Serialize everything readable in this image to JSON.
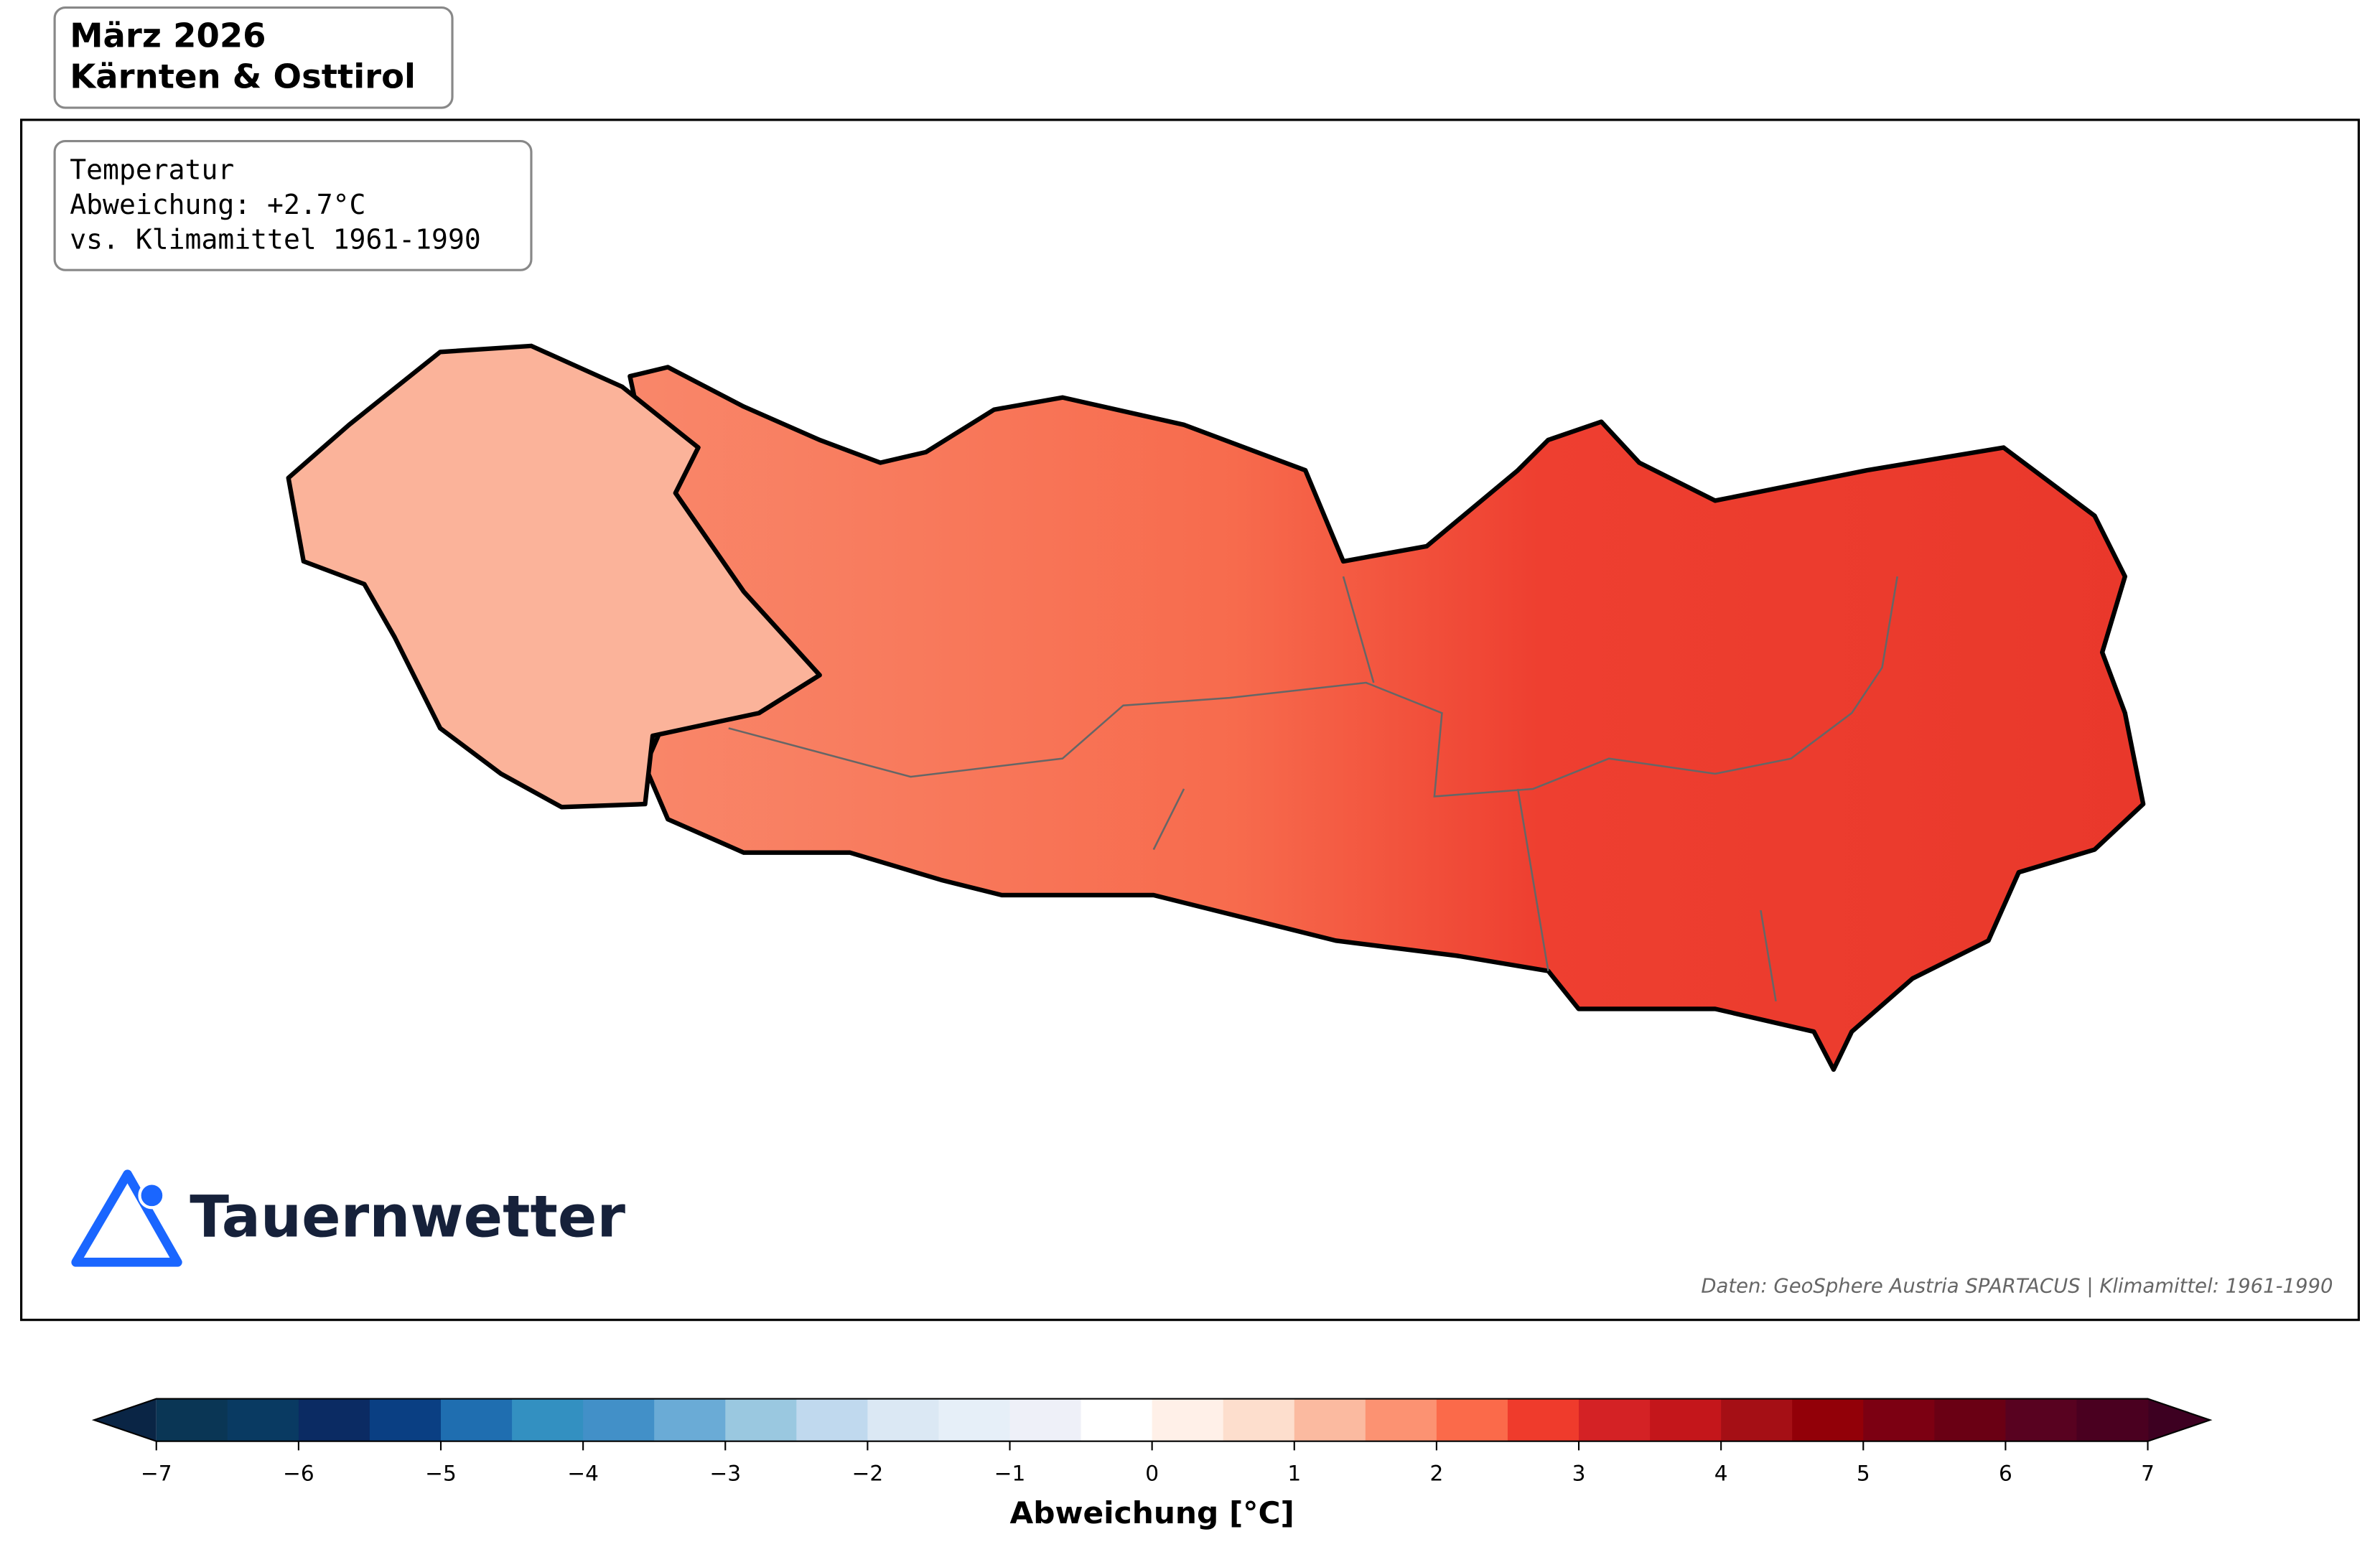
{
  "header": {
    "title_lines": [
      "März 2026",
      "Kärnten & Osttirol"
    ]
  },
  "info_box": {
    "lines": [
      "Temperatur",
      "Abweichung: +2.7°C",
      "vs. Klimamittel 1961-1990"
    ]
  },
  "logo": {
    "text": "Tauernwetter"
  },
  "source": "Daten: GeoSphere Austria SPARTACUS | Klimamittel: 1961-1990",
  "chart_data": {
    "type": "colorbar",
    "xlabel": "Abweichung [°C]",
    "xlim": [
      -7,
      7
    ],
    "xticks": [
      {
        "value": -7,
        "label": "−7"
      },
      {
        "value": -6,
        "label": "−6"
      },
      {
        "value": -5,
        "label": "−5"
      },
      {
        "value": -4,
        "label": "−4"
      },
      {
        "value": -3,
        "label": "−3"
      },
      {
        "value": -2,
        "label": "−2"
      },
      {
        "value": -1,
        "label": "−1"
      },
      0,
      1,
      2,
      3,
      4,
      5,
      6,
      7
    ],
    "bins": [
      -7,
      -6.5,
      -6,
      -5.5,
      -5,
      -4.5,
      -4,
      -3.5,
      -3,
      -2.5,
      -2,
      -1.5,
      -1,
      -0.5,
      0,
      0.5,
      1,
      1.5,
      2,
      2.5,
      3,
      3.5,
      4,
      4.5,
      5,
      5.5,
      6,
      6.5,
      7
    ],
    "colors": [
      "#0a3655",
      "#093a62",
      "#0b2b63",
      "#0a3f83",
      "#1f6eb0",
      "#3390c1",
      "#4290c8",
      "#6aabd6",
      "#9ac8e0",
      "#c0d9ee",
      "#dbe8f4",
      "#e6eff8",
      "#eef0f8",
      "#ffffff",
      "#fff0e8",
      "#fddecd",
      "#fbbaa0",
      "#fc9272",
      "#fb6a4a",
      "#ef3b2c",
      "#d42225",
      "#c4161b",
      "#a50f15",
      "#920008",
      "#7c0012",
      "#6a0014",
      "#580220",
      "#4a0020"
    ],
    "under_color": "#0a2545",
    "over_color": "#3d0021"
  }
}
